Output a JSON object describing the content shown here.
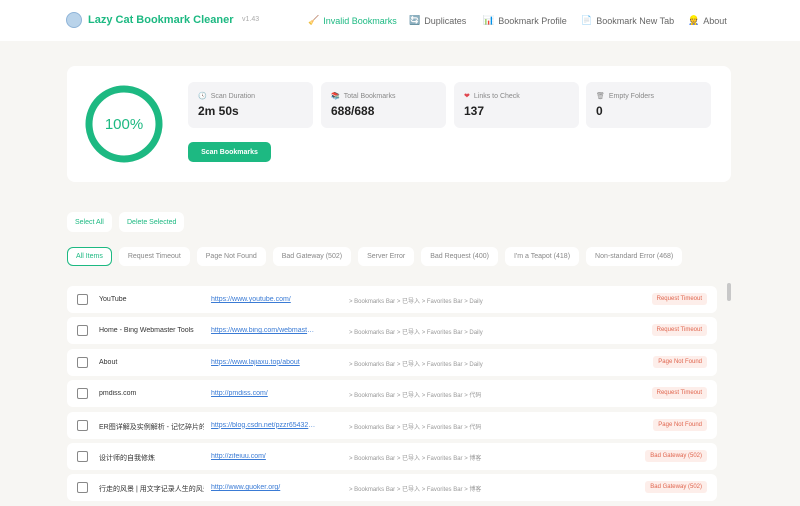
{
  "header": {
    "brand": "Lazy Cat Bookmark Cleaner",
    "version": "v1.43",
    "nav": [
      {
        "label": "Invalid Bookmarks",
        "icon": "broom-icon",
        "glyph": "🧹",
        "active": true
      },
      {
        "label": "Duplicates",
        "icon": "refresh-icon",
        "glyph": "🔄"
      },
      {
        "label": "Bookmark Profile",
        "icon": "bar-chart-icon",
        "glyph": "📊"
      },
      {
        "label": "Bookmark New Tab",
        "icon": "document-icon",
        "glyph": "📄"
      },
      {
        "label": "About",
        "icon": "person-icon",
        "glyph": "👷"
      }
    ]
  },
  "scan": {
    "progress_percent": 100,
    "progress_label": "100%",
    "stats": [
      {
        "label": "Scan Duration",
        "value": "2m 50s",
        "icon": "clock-icon",
        "glyph": "🕓"
      },
      {
        "label": "Total Bookmarks",
        "value": "688/688",
        "icon": "books-icon",
        "glyph": "📚"
      },
      {
        "label": "Links to Check",
        "value": "137",
        "icon": "heart-icon",
        "glyph": "❤"
      },
      {
        "label": "Empty Folders",
        "value": "0",
        "icon": "trash-icon",
        "glyph": "🗑"
      }
    ],
    "button": "Scan Bookmarks"
  },
  "actions": {
    "select_all": "Select All",
    "delete_selected": "Delete Selected"
  },
  "filters": [
    "All Items",
    "Request Timeout",
    "Page Not Found",
    "Bad Gateway (502)",
    "Server Error",
    "Bad Request (400)",
    "I'm a Teapot (418)",
    "Non-standard Error (468)"
  ],
  "rows": [
    {
      "title": "YouTube",
      "url": "https://www.youtube.com/",
      "path": "> Bookmarks Bar > 已导入 > Favorites Bar > Daily",
      "status": "Request Timeout"
    },
    {
      "title": "Home - Bing Webmaster Tools",
      "url": "https://www.bing.com/webmaster...",
      "path": "> Bookmarks Bar > 已导入 > Favorites Bar > Daily",
      "status": "Request Timeout"
    },
    {
      "title": "About",
      "url": "https://www.lajiaxu.top/about",
      "path": "> Bookmarks Bar > 已导入 > Favorites Bar > Daily",
      "status": "Page Not Found"
    },
    {
      "title": "pmdiss.com",
      "url": "http://pmdiss.com/",
      "path": "> Bookmarks Bar > 已导入 > Favorites Bar > 代码",
      "status": "Request Timeout"
    },
    {
      "title": "ER图详解及实例解析 - 记忆碎片的...",
      "url": "https://blog.csdn.net/pzzr654321...",
      "path": "> Bookmarks Bar > 已导入 > Favorites Bar > 代码",
      "status": "Page Not Found"
    },
    {
      "title": "设计师的自我修炼",
      "url": "http://zifeiuu.com/",
      "path": "> Bookmarks Bar > 已导入 > Favorites Bar > 博客",
      "status": "Bad Gateway (502)"
    },
    {
      "title": "行走的风景 | 用文字记录人生的风景",
      "url": "http://www.guoker.org/",
      "path": "> Bookmarks Bar > 已导入 > Favorites Bar > 博客",
      "status": "Bad Gateway (502)"
    }
  ],
  "colors": {
    "accent": "#1db982",
    "error_badge_bg": "#fdeeea",
    "error_badge_text": "#e0654e",
    "link": "#3a7bd5"
  }
}
